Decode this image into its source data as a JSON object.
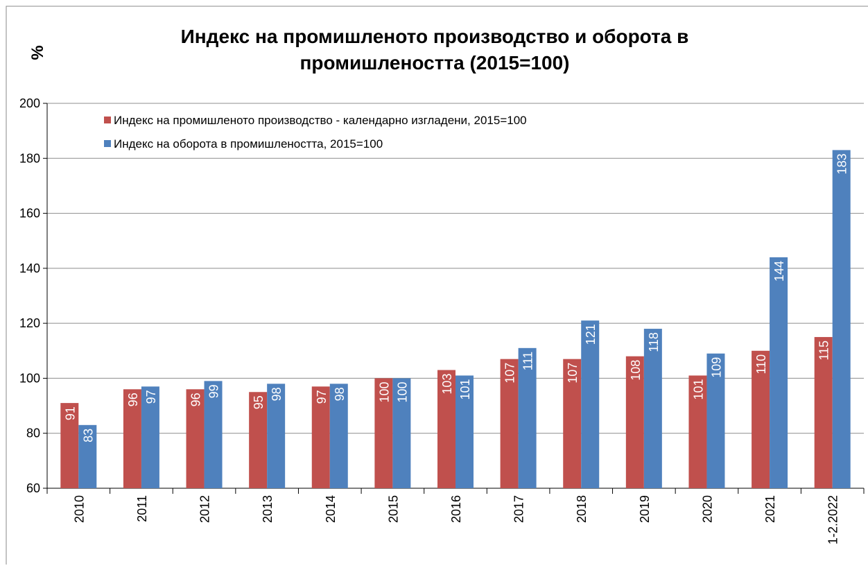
{
  "chart_data": {
    "type": "bar",
    "title": "Индекс на промишленото производство и оборота в промишлеността (2015=100)",
    "title_lines": [
      "Индекс на промишленото производство и оборота в",
      "промишлеността (2015=100)"
    ],
    "y_label": "%",
    "categories": [
      "2010",
      "2011",
      "2012",
      "2013",
      "2014",
      "2015",
      "2016",
      "2017",
      "2018",
      "2019",
      "2020",
      "2021",
      "1-2.2022"
    ],
    "series": [
      {
        "name": "Индекс на промишленото производство - календарно изгладени, 2015=100",
        "color": "#c0504d",
        "values": [
          91,
          96,
          96,
          95,
          97,
          100,
          103,
          107,
          107,
          108,
          101,
          110,
          115
        ]
      },
      {
        "name": "Индекс на оборота в промишлеността, 2015=100",
        "color": "#4f81bd",
        "values": [
          83,
          97,
          99,
          98,
          98,
          100,
          101,
          111,
          121,
          118,
          109,
          144,
          183
        ]
      }
    ],
    "ylim": [
      60,
      200
    ],
    "yticks": [
      60,
      80,
      100,
      120,
      140,
      160,
      180,
      200
    ],
    "grid": true,
    "legend": "top-left"
  }
}
